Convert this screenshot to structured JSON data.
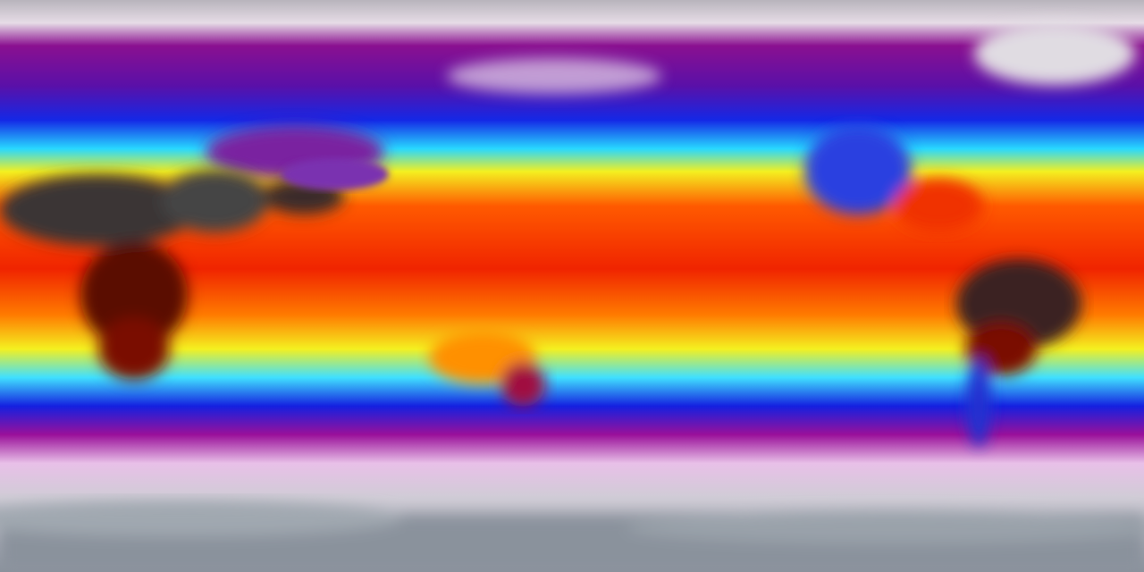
{
  "colors": {
    "polar": "#c8c4cc",
    "cold": "#9a109a",
    "cool": "#1428e6",
    "mild": "#28d8ff",
    "warm": "#f4f020",
    "hot": "#ff3c00",
    "hottest": "#2a2a2a"
  }
}
